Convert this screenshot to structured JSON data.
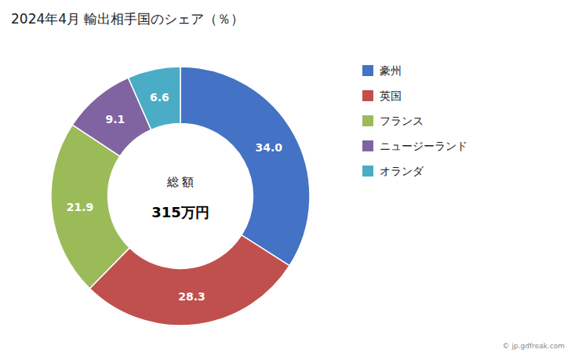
{
  "chart_data": {
    "type": "pie",
    "title": "2024年4月 輸出相手国のシェア（％）",
    "categories": [
      "豪州",
      "英国",
      "フランス",
      "ニュージーランド",
      "オランダ"
    ],
    "values": [
      34.0,
      28.3,
      21.9,
      9.1,
      6.6
    ],
    "value_labels": [
      "34.0",
      "28.3",
      "21.9",
      "9.1",
      "6.6"
    ],
    "colors": [
      "#4472C4",
      "#C0504D",
      "#9BBB59",
      "#8064A2",
      "#4BACC6"
    ],
    "data_labels": true,
    "legend": "right",
    "annotations": [
      "総 額",
      "315万円",
      "© jp.gdfreak.com"
    ]
  }
}
